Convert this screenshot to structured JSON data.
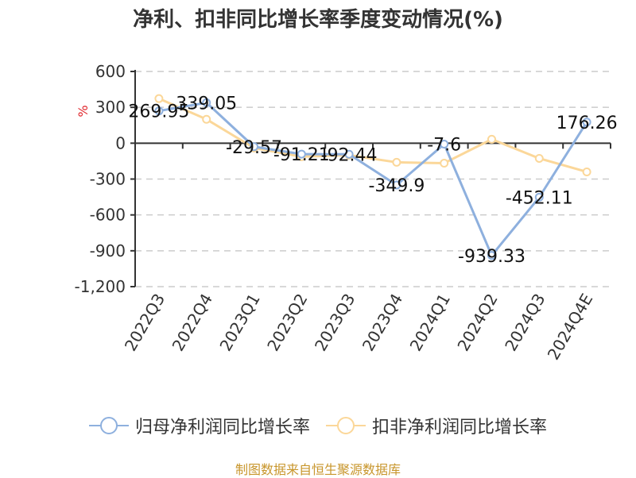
{
  "title": "净利、扣非同比增长率季度变动情况(%)",
  "source": "制图数据来自恒生聚源数据库",
  "colors": {
    "series1": "#8eb0de",
    "series2": "#fbd799",
    "axis": "#333333",
    "grid": "#cccccc",
    "unit": "#e0262c"
  },
  "chart_data": {
    "type": "line",
    "title": "净利、扣非同比增长率季度变动情况(%)",
    "xlabel": "",
    "ylabel": "%",
    "ylim": [
      -1200,
      600
    ],
    "yticks": [
      "600",
      "300",
      "0",
      "-300",
      "-600",
      "-900",
      "-1,200"
    ],
    "yticks_values": [
      600,
      300,
      0,
      -300,
      -600,
      -900,
      -1200
    ],
    "grid": true,
    "legend_position": "bottom",
    "categories": [
      "2022Q3",
      "2022Q4",
      "2023Q1",
      "2023Q2",
      "2023Q3",
      "2023Q4",
      "2024Q1",
      "2024Q2",
      "2024Q3",
      "2024Q4E"
    ],
    "series": [
      {
        "name": "归母净利润同比增长率",
        "values": [
          269.95,
          339.05,
          -29.57,
          -91.21,
          -92.44,
          -349.9,
          -7.6,
          -939.33,
          -452.11,
          176.26
        ],
        "labels": [
          "269.95",
          "339.05",
          "-29.57",
          "-91.21",
          "-92.44",
          "-349.9",
          "-7.6",
          "-939.33",
          "-452.11",
          "176.26"
        ]
      },
      {
        "name": "扣非净利润同比增长率",
        "values": [
          373,
          200,
          -40,
          -113,
          -100,
          -160,
          -167,
          33,
          -127,
          -240
        ]
      }
    ]
  },
  "legend": [
    {
      "label": "归母净利润同比增长率"
    },
    {
      "label": "扣非净利润同比增长率"
    }
  ]
}
